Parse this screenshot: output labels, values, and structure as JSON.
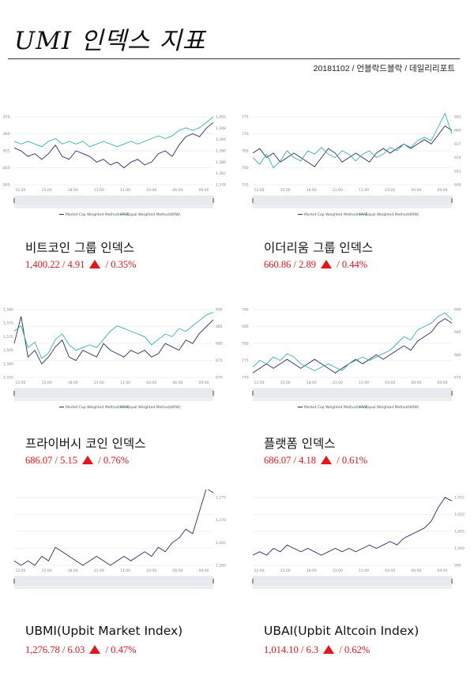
{
  "header": {
    "title": "UMI 인덱스 지표",
    "byline": "20181102 / 언블락드블락 / 데일리리포트"
  },
  "colors": {
    "market_cap": "#2d2a6e",
    "equal_weighted": "#35b3a8",
    "up": "#e8141b"
  },
  "panels": [
    {
      "name": "비트코인 그룹 인덱스",
      "value": "1,400.22",
      "change": "4.91",
      "pct": "0.35%",
      "chart_data": {
        "type": "line",
        "x_ticks": [
          "12:00",
          "15:00",
          "18:00",
          "21:00",
          "11:00",
          "03:00",
          "06:00",
          "09:00"
        ],
        "y_left_ticks": [
          "870",
          "860",
          "855",
          "850",
          "845"
        ],
        "y_right_ticks": [
          "1,402",
          "1,398",
          "1,394",
          "1,390",
          "1,386",
          "1,382",
          "1,378"
        ],
        "series": [
          {
            "name": "Market Cap Weighted Method(KRW)",
            "axis": "right",
            "color": "#2d2a6e",
            "values": [
              1391,
              1390,
              1388,
              1389,
              1387,
              1389,
              1392,
              1388,
              1387,
              1390,
              1389,
              1388,
              1386,
              1387,
              1385,
              1386,
              1384,
              1386,
              1387,
              1385,
              1386,
              1389,
              1390,
              1388,
              1392,
              1395,
              1396,
              1395,
              1398,
              1400
            ]
          },
          {
            "name": "Equal Weighted Method(KRW)",
            "axis": "left",
            "color": "#35b3a8",
            "values": [
              861,
              860,
              861,
              860,
              859,
              861,
              862,
              860,
              861,
              860,
              861,
              859,
              860,
              861,
              860,
              859,
              860,
              861,
              860,
              861,
              862,
              863,
              862,
              863,
              865,
              866,
              865,
              866,
              868,
              870
            ]
          }
        ]
      }
    },
    {
      "name": "이더리움 그룹 인덱스",
      "value": "660.86",
      "change": "2.89",
      "pct": "0.44%",
      "chart_data": {
        "type": "line",
        "x_ticks": [
          "12:00",
          "15:00",
          "18:00",
          "21:00",
          "11:00",
          "03:00",
          "06:00",
          "09:00"
        ],
        "y_left_ticks": [
          "775",
          "770",
          "765",
          "760",
          "755"
        ],
        "y_right_ticks": [
          "663",
          "660",
          "657",
          "654",
          "651",
          "648"
        ],
        "series": [
          {
            "name": "Market Cap Weighted Method(KRW)",
            "axis": "right",
            "color": "#2d2a6e",
            "values": [
              655,
              656,
              654,
              655,
              653,
              654,
              655,
              654,
              653,
              652,
              654,
              656,
              655,
              653,
              654,
              655,
              654,
              653,
              655,
              656,
              655,
              656,
              657,
              656,
              657,
              658,
              657,
              659,
              661,
              660
            ]
          },
          {
            "name": "Equal Weighted Method(KRW)",
            "axis": "left",
            "color": "#35b3a8",
            "values": [
              763,
              761,
              764,
              760,
              762,
              765,
              763,
              762,
              765,
              764,
              766,
              764,
              763,
              765,
              764,
              762,
              764,
              765,
              763,
              764,
              766,
              765,
              767,
              766,
              768,
              769,
              768,
              772,
              776,
              770
            ]
          }
        ]
      }
    },
    {
      "name": "프라이버시 코인 인덱스",
      "value": "686.07",
      "change": "5.15",
      "pct": "0.76%",
      "chart_data": {
        "type": "line",
        "x_ticks": [
          "12:00",
          "15:00",
          "18:00",
          "21:00",
          "11:00",
          "03:00",
          "06:00",
          "09:00"
        ],
        "y_left_ticks": [
          "1,580",
          "1,575",
          "1,570",
          "1,565",
          "1,560",
          "1,555"
        ],
        "y_right_ticks": [
          "690",
          "685",
          "680",
          "675",
          "670"
        ],
        "series": [
          {
            "name": "Market Cap Weighted Method(KRW)",
            "axis": "right",
            "color": "#2d2a6e",
            "values": [
              680,
              688,
              676,
              678,
              674,
              676,
              679,
              681,
              676,
              675,
              678,
              677,
              676,
              680,
              678,
              677,
              676,
              678,
              677,
              678,
              676,
              677,
              680,
              679,
              678,
              681,
              680,
              683,
              685,
              687
            ]
          },
          {
            "name": "Equal Weighted Method(KRW)",
            "axis": "left",
            "color": "#35b3a8",
            "values": [
              1572,
              1574,
              1566,
              1568,
              1562,
              1564,
              1569,
              1571,
              1567,
              1565,
              1566,
              1567,
              1566,
              1569,
              1572,
              1574,
              1573,
              1572,
              1571,
              1570,
              1567,
              1569,
              1571,
              1570,
              1573,
              1572,
              1574,
              1576,
              1578,
              1579
            ]
          }
        ]
      }
    },
    {
      "name": "플랫폼 인덱스",
      "value": "686.07",
      "change": "4.18",
      "pct": "0.61%",
      "chart_data": {
        "type": "line",
        "x_ticks": [
          "12:00",
          "15:00",
          "18:00",
          "21:00",
          "11:00",
          "03:00",
          "06:00",
          "09:00"
        ],
        "y_left_ticks": [
          "790",
          "785",
          "780",
          "775",
          "770"
        ],
        "y_right_ticks": [
          "690",
          "685",
          "680",
          "675"
        ],
        "series": [
          {
            "name": "Market Cap Weighted Method(KRW)",
            "axis": "right",
            "color": "#2d2a6e",
            "values": [
              676,
              677,
              678,
              677,
              678,
              679,
              678,
              677,
              678,
              679,
              678,
              677,
              676,
              677,
              678,
              679,
              678,
              679,
              680,
              679,
              680,
              681,
              682,
              681,
              683,
              684,
              685,
              687,
              688,
              687
            ]
          },
          {
            "name": "Equal Weighted Method(KRW)",
            "axis": "left",
            "color": "#35b3a8",
            "values": [
              773,
              775,
              774,
              776,
              775,
              777,
              776,
              774,
              773,
              772,
              773,
              774,
              773,
              772,
              774,
              775,
              776,
              775,
              776,
              777,
              778,
              780,
              782,
              781,
              784,
              785,
              786,
              788,
              789,
              787
            ]
          }
        ]
      }
    },
    {
      "name": "UBMI(Upbit Market Index)",
      "value": "1,276.78",
      "change": "6.03",
      "pct": "0.47%",
      "chart_data": {
        "type": "line",
        "x_ticks": [
          "12:00",
          "15:00",
          "18:00",
          "21:00",
          "11:00",
          "03:00",
          "06:00",
          "09:00"
        ],
        "y_right_ticks": [
          "1,275",
          "1,270",
          "1,265",
          "1,260"
        ],
        "series": [
          {
            "name": "UBMI",
            "axis": "right",
            "color": "#2d2a6e",
            "values": [
              1261,
              1260,
              1261,
              1260,
              1262,
              1261,
              1264,
              1263,
              1262,
              1261,
              1260,
              1261,
              1262,
              1261,
              1260,
              1261,
              1262,
              1261,
              1262,
              1263,
              1262,
              1264,
              1263,
              1265,
              1266,
              1268,
              1267,
              1272,
              1277,
              1276
            ]
          }
        ]
      }
    },
    {
      "name": "UBAI(Upbit Altcoin Index)",
      "value": "1,014.10",
      "change": "6.3",
      "pct": "0.62%",
      "chart_data": {
        "type": "line",
        "x_ticks": [
          "12:00",
          "15:00",
          "18:00",
          "21:00",
          "11:00",
          "03:00",
          "06:00",
          "09:00"
        ],
        "y_right_ticks": [
          "1,015",
          "1,010",
          "1,005",
          "1,000",
          "995"
        ],
        "series": [
          {
            "name": "UBAI",
            "axis": "right",
            "color": "#2d2a6e",
            "values": [
              998,
              999,
              998,
              1000,
              999,
              1001,
              1000,
              999,
              1000,
              999,
              998,
              999,
              1000,
              999,
              1000,
              999,
              1000,
              1001,
              1000,
              1001,
              1002,
              1001,
              1003,
              1004,
              1005,
              1006,
              1008,
              1012,
              1015,
              1014
            ]
          }
        ]
      }
    }
  ]
}
